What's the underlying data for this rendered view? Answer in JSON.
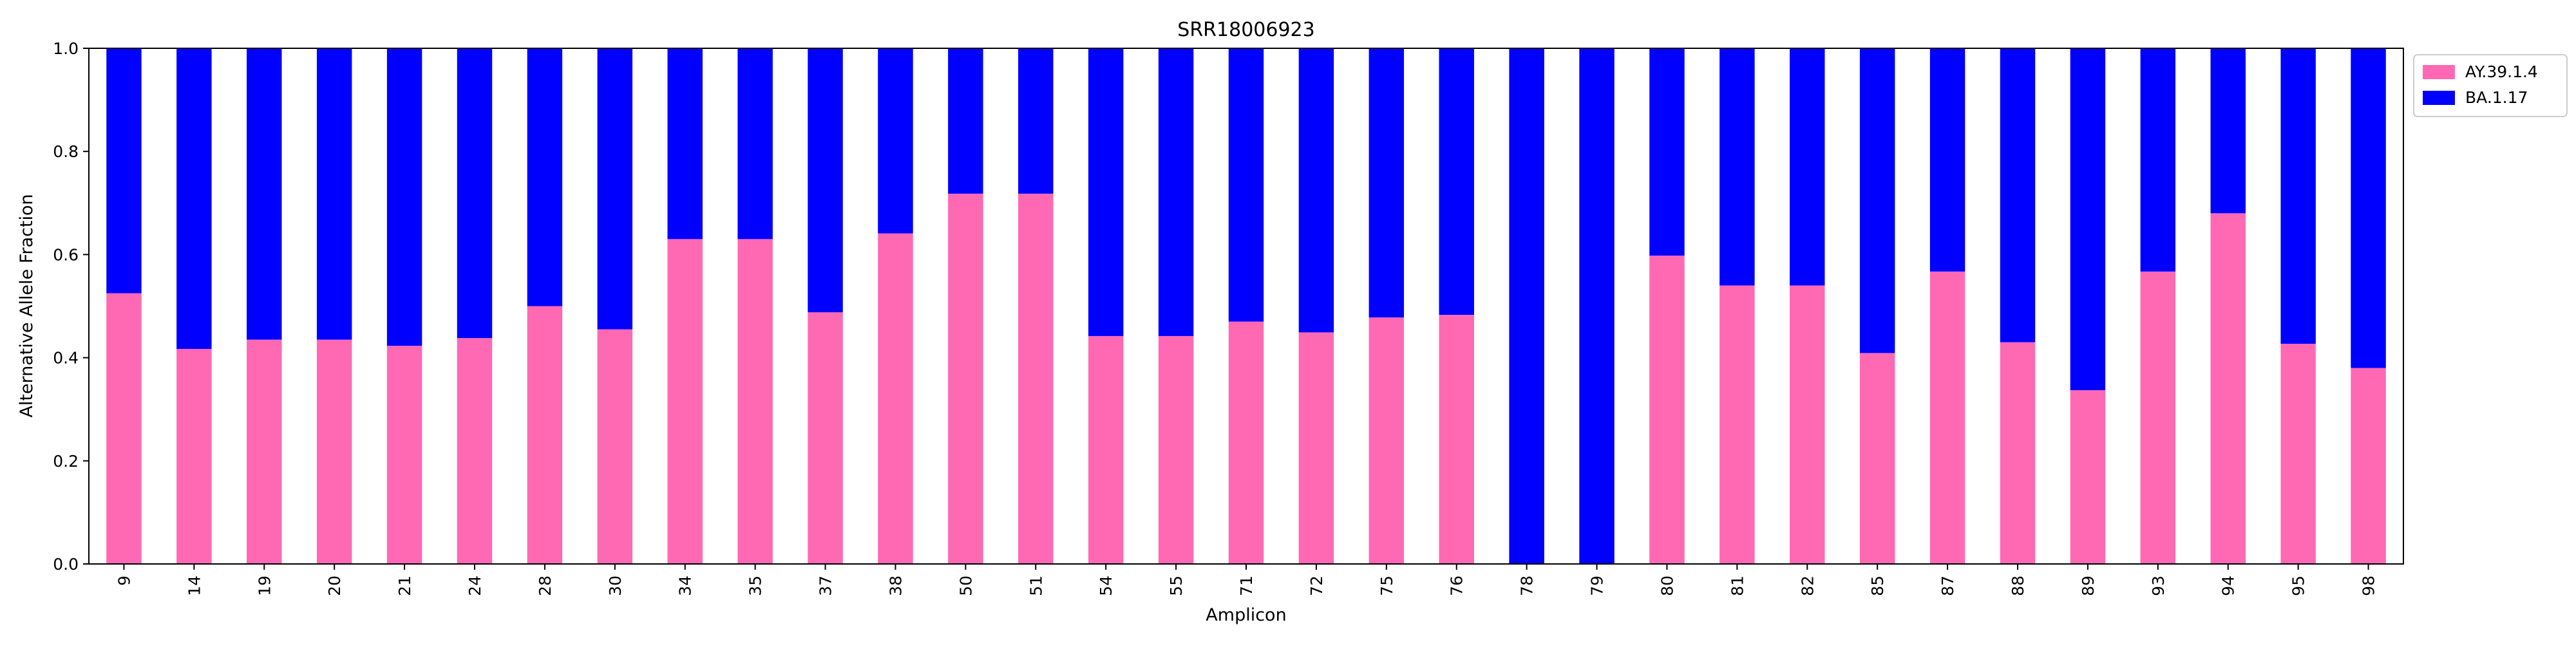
{
  "chart_data": {
    "type": "bar",
    "stacked": true,
    "title": "SRR18006923",
    "xlabel": "Amplicon",
    "ylabel": "Alternative Allele Fraction",
    "ylim": [
      0,
      1
    ],
    "yticks": [
      "0.0",
      "0.2",
      "0.4",
      "0.6",
      "0.8",
      "1.0"
    ],
    "grid": false,
    "legend_position": "outside top-right",
    "categories": [
      "9",
      "14",
      "19",
      "20",
      "21",
      "24",
      "28",
      "30",
      "34",
      "35",
      "37",
      "38",
      "50",
      "51",
      "54",
      "55",
      "71",
      "72",
      "75",
      "76",
      "78",
      "79",
      "80",
      "81",
      "82",
      "85",
      "87",
      "88",
      "89",
      "93",
      "94",
      "95",
      "98"
    ],
    "series": [
      {
        "name": "AY.39.1.4",
        "color": "#ff69b4",
        "values": [
          0.525,
          0.417,
          0.435,
          0.435,
          0.423,
          0.438,
          0.5,
          0.455,
          0.63,
          0.63,
          0.488,
          0.641,
          0.718,
          0.718,
          0.442,
          0.442,
          0.47,
          0.449,
          0.478,
          0.483,
          0.0,
          0.0,
          0.598,
          0.54,
          0.54,
          0.409,
          0.567,
          0.43,
          0.337,
          0.567,
          0.68,
          0.427,
          0.38
        ]
      },
      {
        "name": "BA.1.17",
        "color": "#0000ff",
        "values": [
          0.475,
          0.583,
          0.565,
          0.565,
          0.577,
          0.562,
          0.5,
          0.545,
          0.37,
          0.37,
          0.512,
          0.359,
          0.282,
          0.282,
          0.558,
          0.558,
          0.53,
          0.551,
          0.522,
          0.517,
          1.0,
          1.0,
          0.402,
          0.46,
          0.46,
          0.591,
          0.433,
          0.57,
          0.663,
          0.433,
          0.32,
          0.573,
          0.62
        ]
      }
    ]
  }
}
